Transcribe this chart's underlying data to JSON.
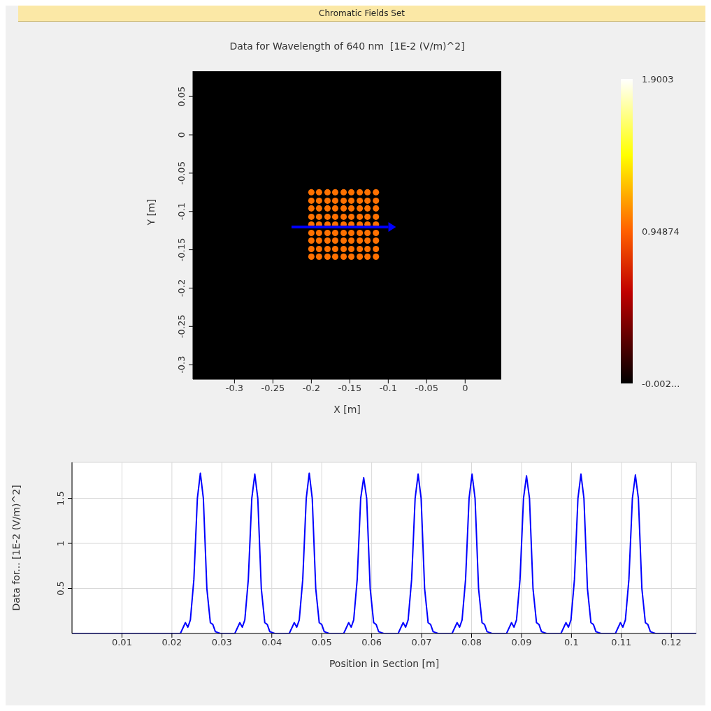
{
  "chart_data": [
    {
      "type": "scatter",
      "title": "Data for Wavelength of 640 nm  [1E-2 (V/m)^2]",
      "annotations": [
        "Chromatic Fields Set"
      ],
      "xlabel": "X [m]",
      "ylabel": "Y [m]",
      "x": [
        -0.2,
        -0.19,
        -0.179,
        -0.169,
        -0.158,
        -0.148,
        -0.137,
        -0.127,
        -0.116,
        -0.2,
        -0.19,
        -0.179,
        -0.169,
        -0.158,
        -0.148,
        -0.137,
        -0.127,
        -0.116,
        -0.2,
        -0.19,
        -0.179,
        -0.169,
        -0.158,
        -0.148,
        -0.137,
        -0.127,
        -0.116,
        -0.2,
        -0.19,
        -0.179,
        -0.169,
        -0.158,
        -0.148,
        -0.137,
        -0.127,
        -0.116,
        -0.2,
        -0.19,
        -0.179,
        -0.169,
        -0.158,
        -0.148,
        -0.137,
        -0.127,
        -0.116,
        -0.2,
        -0.19,
        -0.179,
        -0.169,
        -0.158,
        -0.148,
        -0.137,
        -0.127,
        -0.116,
        -0.2,
        -0.19,
        -0.179,
        -0.169,
        -0.158,
        -0.148,
        -0.137,
        -0.127,
        -0.116,
        -0.2,
        -0.19,
        -0.179,
        -0.169,
        -0.158,
        -0.148,
        -0.137,
        -0.127,
        -0.116,
        -0.2,
        -0.19,
        -0.179,
        -0.169,
        -0.158,
        -0.148,
        -0.137,
        -0.127,
        -0.116
      ],
      "values": [
        -0.075,
        -0.075,
        -0.075,
        -0.075,
        -0.075,
        -0.075,
        -0.075,
        -0.075,
        -0.075,
        -0.086,
        -0.086,
        -0.086,
        -0.086,
        -0.086,
        -0.086,
        -0.086,
        -0.086,
        -0.086,
        -0.096,
        -0.096,
        -0.096,
        -0.096,
        -0.096,
        -0.096,
        -0.096,
        -0.096,
        -0.096,
        -0.107,
        -0.107,
        -0.107,
        -0.107,
        -0.107,
        -0.107,
        -0.107,
        -0.107,
        -0.107,
        -0.117,
        -0.117,
        -0.117,
        -0.117,
        -0.117,
        -0.117,
        -0.117,
        -0.117,
        -0.117,
        -0.128,
        -0.128,
        -0.128,
        -0.128,
        -0.128,
        -0.128,
        -0.128,
        -0.128,
        -0.128,
        -0.138,
        -0.138,
        -0.138,
        -0.138,
        -0.138,
        -0.138,
        -0.138,
        -0.138,
        -0.138,
        -0.149,
        -0.149,
        -0.149,
        -0.149,
        -0.149,
        -0.149,
        -0.149,
        -0.149,
        -0.149,
        -0.159,
        -0.159,
        -0.159,
        -0.159,
        -0.159,
        -0.159,
        -0.159,
        -0.159,
        -0.159
      ],
      "cvalues": [
        1.0,
        1.0,
        1.0,
        1.0,
        1.0,
        1.0,
        1.0,
        1.0,
        1.0,
        1.0,
        1.0,
        1.0,
        1.0,
        1.0,
        1.0,
        1.0,
        1.0,
        1.0,
        1.0,
        1.0,
        1.0,
        1.0,
        1.0,
        1.0,
        1.0,
        1.0,
        1.0,
        1.0,
        1.0,
        1.0,
        1.0,
        1.0,
        1.0,
        1.0,
        1.0,
        1.0,
        1.0,
        1.0,
        1.0,
        1.0,
        1.0,
        1.0,
        1.0,
        1.0,
        1.0,
        1.0,
        1.0,
        1.0,
        1.0,
        1.0,
        1.0,
        1.0,
        1.0,
        1.0,
        1.0,
        1.0,
        1.0,
        1.0,
        1.0,
        1.0,
        1.0,
        1.0,
        1.0,
        1.0,
        1.0,
        1.0,
        1.0,
        1.0,
        1.0,
        1.0,
        1.0,
        1.0,
        1.0,
        1.0,
        1.0,
        1.0,
        1.0,
        1.0,
        1.0,
        1.0,
        1.0
      ],
      "marker": "circle",
      "xlim": [
        -0.354,
        0.047
      ],
      "ylim": [
        -0.319,
        0.083
      ],
      "xticks": [
        -0.3,
        -0.25,
        -0.2,
        -0.15,
        -0.1,
        -0.05,
        0
      ],
      "yticks": [
        0.05,
        0,
        -0.05,
        -0.1,
        -0.15,
        -0.2,
        -0.25,
        -0.3
      ],
      "clim": [
        -0.002,
        1.9003
      ],
      "cticks": [
        1.9003,
        0.94874,
        {
          "value": -0.002,
          "label": "-0.002..."
        }
      ]
    },
    {
      "type": "line",
      "xlabel": "Position in Section [m]",
      "ylabel": "Data for... [1E-2 (V/m)^2]",
      "x": [
        0,
        0.0145,
        0.0217,
        0.0227,
        0.0232,
        0.0237,
        0.0244,
        0.0251,
        0.0257,
        0.0263,
        0.027,
        0.0277,
        0.0282,
        0.0287,
        0.0297,
        0.0326,
        0.0336,
        0.0341,
        0.0346,
        0.0353,
        0.036,
        0.0366,
        0.0372,
        0.0379,
        0.0386,
        0.0391,
        0.0396,
        0.0406,
        0.0435,
        0.0445,
        0.045,
        0.0455,
        0.0462,
        0.0469,
        0.0475,
        0.0481,
        0.0488,
        0.0495,
        0.05,
        0.0505,
        0.0515,
        0.0544,
        0.0554,
        0.0559,
        0.0564,
        0.0571,
        0.0578,
        0.0584,
        0.059,
        0.0597,
        0.0604,
        0.0609,
        0.0614,
        0.0624,
        0.0653,
        0.0663,
        0.0668,
        0.0673,
        0.068,
        0.0687,
        0.0693,
        0.0699,
        0.0706,
        0.0713,
        0.0718,
        0.0723,
        0.0733,
        0.0761,
        0.0771,
        0.0776,
        0.0781,
        0.0788,
        0.0795,
        0.0801,
        0.0807,
        0.0814,
        0.0821,
        0.0826,
        0.0831,
        0.0841,
        0.087,
        0.088,
        0.0885,
        0.089,
        0.0897,
        0.0904,
        0.091,
        0.0916,
        0.0923,
        0.093,
        0.0935,
        0.094,
        0.095,
        0.0979,
        0.0989,
        0.0994,
        0.0999,
        0.1006,
        0.1013,
        0.1019,
        0.1025,
        0.1032,
        0.1039,
        0.1044,
        0.1049,
        0.1059,
        0.1088,
        0.1098,
        0.1103,
        0.1108,
        0.1115,
        0.1122,
        0.1128,
        0.1134,
        0.1141,
        0.1148,
        0.1153,
        0.1158,
        0.1168,
        0.125
      ],
      "series": [
        {
          "color": "#0000ff",
          "values": [
            0,
            0,
            0,
            0.12,
            0.07,
            0.15,
            0.6,
            1.5,
            1.78,
            1.5,
            0.5,
            0.12,
            0.1,
            0.02,
            0,
            0,
            0.12,
            0.07,
            0.15,
            0.6,
            1.5,
            1.77,
            1.5,
            0.5,
            0.12,
            0.1,
            0.02,
            0,
            0,
            0.12,
            0.07,
            0.15,
            0.6,
            1.5,
            1.78,
            1.5,
            0.5,
            0.12,
            0.1,
            0.02,
            0,
            0,
            0.12,
            0.07,
            0.15,
            0.6,
            1.5,
            1.73,
            1.5,
            0.5,
            0.12,
            0.1,
            0.02,
            0,
            0,
            0.12,
            0.07,
            0.15,
            0.6,
            1.5,
            1.77,
            1.5,
            0.5,
            0.12,
            0.1,
            0.02,
            0,
            0,
            0.12,
            0.07,
            0.15,
            0.6,
            1.5,
            1.77,
            1.5,
            0.5,
            0.12,
            0.1,
            0.02,
            0,
            0,
            0.12,
            0.07,
            0.15,
            0.6,
            1.5,
            1.75,
            1.5,
            0.5,
            0.12,
            0.1,
            0.02,
            0,
            0,
            0.12,
            0.07,
            0.15,
            0.6,
            1.5,
            1.77,
            1.5,
            0.5,
            0.12,
            0.1,
            0.02,
            0,
            0,
            0.12,
            0.07,
            0.15,
            0.6,
            1.5,
            1.76,
            1.5,
            0.5,
            0.12,
            0.1,
            0.02,
            0,
            0
          ]
        }
      ],
      "xlim": [
        0,
        0.125
      ],
      "ylim": [
        0,
        1.9
      ],
      "xticks": [
        0.01,
        0.02,
        0.03,
        0.04,
        0.05,
        0.06,
        0.07,
        0.08,
        0.09,
        0.1,
        0.11,
        0.12
      ],
      "yticks": [
        0.5,
        1,
        1.5
      ],
      "grid": true,
      "marker": "none",
      "line_style": "solid"
    }
  ]
}
